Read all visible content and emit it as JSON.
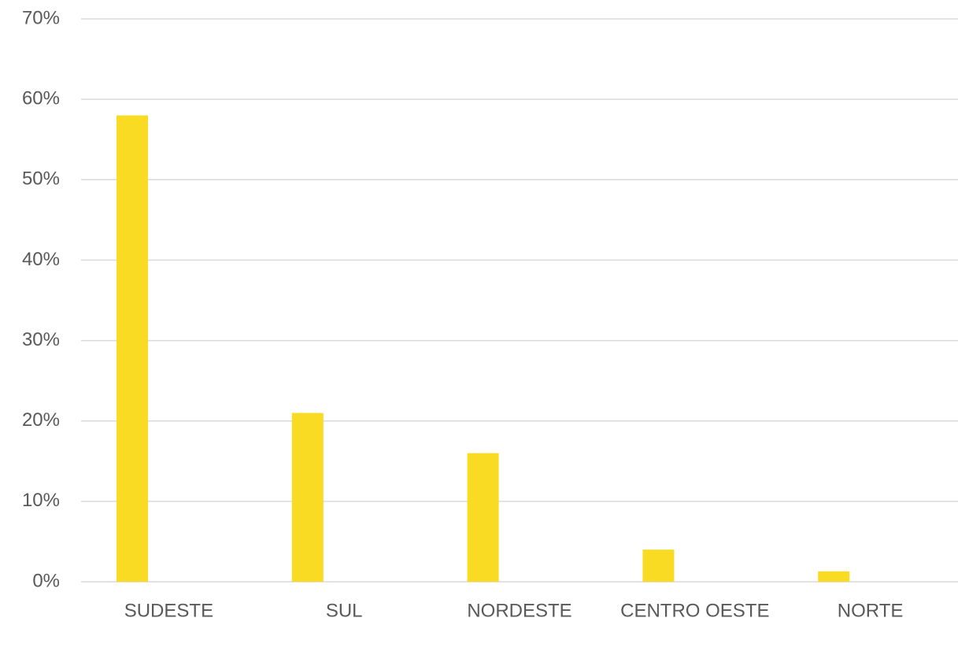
{
  "chart_data": {
    "type": "bar",
    "categories": [
      "SUDESTE",
      "SUL",
      "NORDESTE",
      "CENTRO OESTE",
      "NORTE"
    ],
    "values": [
      58,
      21,
      16,
      4,
      1.3
    ],
    "color": "#f8db22",
    "ylim": [
      0,
      70
    ],
    "yticks": [
      {
        "value": 0,
        "label": "0%"
      },
      {
        "value": 10,
        "label": "10%"
      },
      {
        "value": 20,
        "label": "20%"
      },
      {
        "value": 30,
        "label": "30%"
      },
      {
        "value": 40,
        "label": "40%"
      },
      {
        "value": 50,
        "label": "50%"
      },
      {
        "value": 60,
        "label": "60%"
      },
      {
        "value": 70,
        "label": "70%"
      }
    ],
    "grid": true
  }
}
